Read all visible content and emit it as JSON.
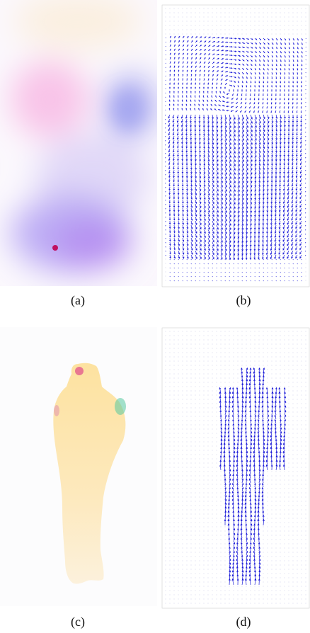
{
  "figure": {
    "panels": [
      {
        "id": "a",
        "caption": "(a)",
        "kind": "flow-color-map"
      },
      {
        "id": "b",
        "caption": "(b)",
        "kind": "flow-quiver"
      },
      {
        "id": "c",
        "caption": "(c)",
        "kind": "flow-color-map"
      },
      {
        "id": "d",
        "caption": "(d)",
        "kind": "flow-quiver"
      }
    ]
  },
  "colors": {
    "arrow": "#1a1ad8",
    "blob_pink": "#f6a8e0",
    "blob_blue": "#a9a6f2",
    "blob_purple": "#b287f0",
    "blob_peach": "#fbe9cf",
    "silhouette": "#fde3a2"
  }
}
